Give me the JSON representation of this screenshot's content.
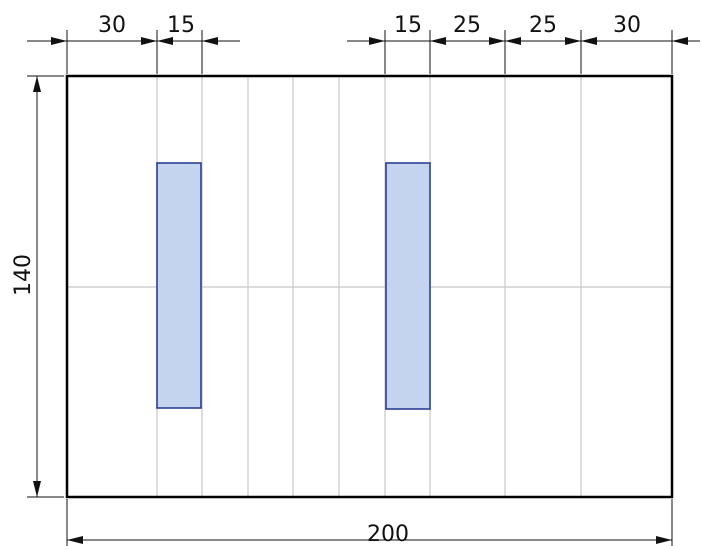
{
  "drawing": {
    "top_dimensions": [
      "30",
      "15",
      "15",
      "25",
      "25",
      "30"
    ],
    "overall_width": "200",
    "overall_height": "140",
    "plate_fill": "#c4d3ee",
    "plate_stroke": "#2b3f95"
  }
}
